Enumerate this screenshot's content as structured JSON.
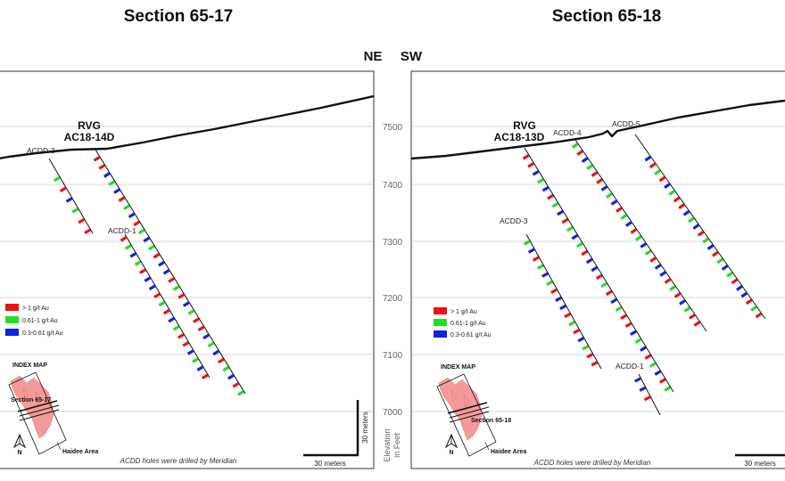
{
  "titles": {
    "left": "Section 65-17",
    "right": "Section 65-18"
  },
  "orientation": {
    "ne": "NE",
    "sw": "SW"
  },
  "left_section": {
    "target_label": "RVG",
    "target_hole": "AC18-14D",
    "holes": [
      "ACDD-3",
      "ACDD-1"
    ],
    "index_map": {
      "title": "INDEX MAP",
      "section_label": "Section 65-17",
      "area_label": "Haidee Area",
      "north": "N"
    },
    "note": "ACDD holes were drilled by Meridian",
    "scale_h": "30 meters",
    "scale_v": "30 meters"
  },
  "right_section": {
    "target_label": "RVG",
    "target_hole": "AC18-13D",
    "holes": [
      "ACDD-4",
      "ACDD-5",
      "ACDD-3",
      "ACDD-1"
    ],
    "index_map": {
      "title": "INDEX MAP",
      "section_label": "Section 65-18",
      "area_label": "Haidee Area",
      "north": "N"
    },
    "note": "ACDD holes were drilled by Meridian",
    "scale_h": "30 meters"
  },
  "legend": [
    {
      "label": "> 1 g/t Au",
      "color": "#ee1111"
    },
    {
      "label": "0.61-1 g/t Au",
      "color": "#22dd22"
    },
    {
      "label": "0.3-0.61 g/t Au",
      "color": "#1122dd"
    }
  ],
  "elevation": {
    "ticks": [
      "7500",
      "7400",
      "7300",
      "7200",
      "7100",
      "7000"
    ],
    "axis_label_1": "Elevation",
    "axis_label_2": "in Feet"
  }
}
